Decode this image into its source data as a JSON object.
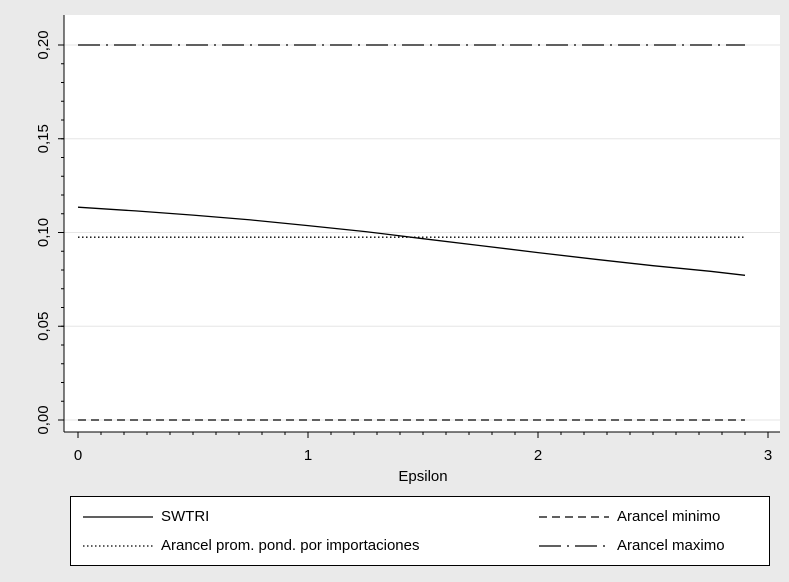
{
  "chart_data": {
    "type": "line",
    "xlabel": "Epsilon",
    "ylabel": "",
    "xlim": [
      0,
      3
    ],
    "ylim": [
      0,
      0.2
    ],
    "xticks": [
      0,
      1,
      2,
      3
    ],
    "xtick_labels": [
      "0",
      "1",
      "2",
      "3"
    ],
    "yticks": [
      0,
      0.05,
      0.1,
      0.15,
      0.2
    ],
    "ytick_labels": [
      "0,00",
      "0,05",
      "0,10",
      "0,15",
      "0,20"
    ],
    "grid": true,
    "legend_position": "bottom",
    "series": [
      {
        "name": "SWTRI",
        "style": "solid",
        "color": "#000000",
        "x": [
          0,
          0.25,
          0.5,
          0.75,
          1.0,
          1.25,
          1.5,
          1.75,
          2.0,
          2.25,
          2.5,
          2.75,
          2.9
        ],
        "y": [
          0.1135,
          0.1115,
          0.1093,
          0.1067,
          0.1037,
          0.1005,
          0.0967,
          0.093,
          0.0893,
          0.0857,
          0.0823,
          0.0793,
          0.0772
        ]
      },
      {
        "name": "Arancel prom. pond. por importaciones",
        "style": "dotted",
        "color": "#000000",
        "x": [
          0,
          2.9
        ],
        "y": [
          0.0975,
          0.0975
        ]
      },
      {
        "name": "Arancel minimo",
        "style": "dashed",
        "color": "#000000",
        "x": [
          0,
          2.9
        ],
        "y": [
          0.0,
          0.0
        ]
      },
      {
        "name": "Arancel maximo",
        "style": "longdash-dot",
        "color": "#000000",
        "x": [
          0,
          2.9
        ],
        "y": [
          0.2,
          0.2
        ]
      }
    ]
  }
}
